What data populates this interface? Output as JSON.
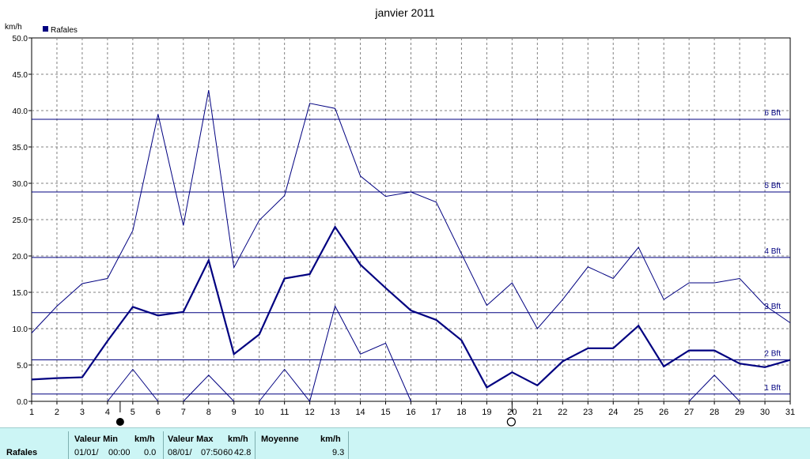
{
  "chart_data": {
    "type": "line",
    "title": "janvier 2011",
    "ylabel": "km/h",
    "xlabel": "",
    "x": [
      1,
      2,
      3,
      4,
      5,
      6,
      7,
      8,
      9,
      10,
      11,
      12,
      13,
      14,
      15,
      16,
      17,
      18,
      19,
      20,
      21,
      22,
      23,
      24,
      25,
      26,
      27,
      28,
      29,
      30,
      31
    ],
    "ylim": [
      0,
      50
    ],
    "yticks": [
      "0.0",
      "5.0",
      "10.0",
      "15.0",
      "20.0",
      "25.0",
      "30.0",
      "35.0",
      "40.0",
      "45.0",
      "50.0"
    ],
    "grid": true,
    "legend": [
      {
        "label": "Rafales",
        "color": "#000080"
      }
    ],
    "legend_position": "top-left",
    "series": [
      {
        "name": "Rafales",
        "role": "mean",
        "color": "#000080",
        "values": [
          3.0,
          3.2,
          3.3,
          8.3,
          13.0,
          11.8,
          12.3,
          19.4,
          6.5,
          9.2,
          16.9,
          17.5,
          24.0,
          18.8,
          15.6,
          12.5,
          11.2,
          8.4,
          1.9,
          4.0,
          2.2,
          5.5,
          7.3,
          7.3,
          10.4,
          4.8,
          7.0,
          7.0,
          5.2,
          4.7,
          5.7
        ]
      },
      {
        "role": "max",
        "color": "#000080",
        "values": [
          9.4,
          13.1,
          16.2,
          16.9,
          23.5,
          39.5,
          24.2,
          42.8,
          18.4,
          24.9,
          28.3,
          41.0,
          40.3,
          31.0,
          28.2,
          28.8,
          27.4,
          20.3,
          13.2,
          16.3,
          10.0,
          14.0,
          18.5,
          16.9,
          21.2,
          14.0,
          16.3,
          16.3,
          16.9,
          13.2,
          10.8
        ]
      },
      {
        "role": "min",
        "color": "#000080",
        "segments": [
          [
            [
              4,
              0
            ],
            [
              5,
              4.4
            ],
            [
              6,
              0
            ]
          ],
          [
            [
              7,
              0
            ],
            [
              8,
              3.6
            ],
            [
              9,
              0
            ]
          ],
          [
            [
              10,
              0
            ],
            [
              11,
              4.4
            ],
            [
              12,
              0
            ],
            [
              13,
              13.1
            ],
            [
              14,
              6.5
            ],
            [
              15,
              8.0
            ],
            [
              16,
              0
            ]
          ],
          [
            [
              27,
              0
            ],
            [
              28,
              3.6
            ],
            [
              29,
              0
            ]
          ]
        ]
      }
    ],
    "reference_lines": [
      {
        "label": "1 Bft",
        "value": 1.0
      },
      {
        "label": "2 Bft",
        "value": 5.7
      },
      {
        "label": "3 Bft",
        "value": 12.2
      },
      {
        "label": "4 Bft",
        "value": 19.8
      },
      {
        "label": "5 Bft",
        "value": 28.8
      },
      {
        "label": "6 Bft",
        "value": 38.8
      }
    ],
    "moon_phases": [
      {
        "x": 4.5,
        "phase": "new-moon"
      },
      {
        "x": 20,
        "phase": "full-moon"
      }
    ]
  },
  "footer": {
    "row_label": "Rafales",
    "min_header": "Valeur Min",
    "min_unit": "km/h",
    "min_date": "01/01/",
    "min_time": "00:00",
    "min_value": "0.0",
    "max_header": "Valeur Max",
    "max_unit": "km/h",
    "max_date": "08/01/",
    "max_time": "07:50",
    "max_extra": "60",
    "max_value": "42.8",
    "avg_header": "Moyenne",
    "avg_unit": "km/h",
    "avg_value": "9.3"
  }
}
